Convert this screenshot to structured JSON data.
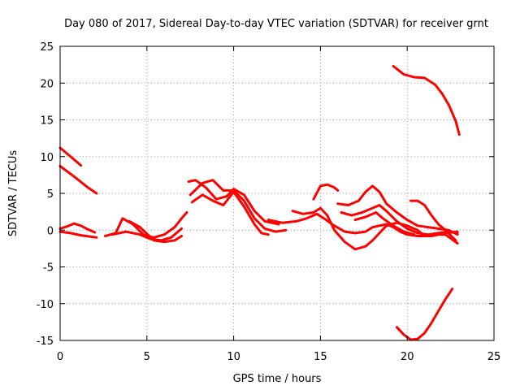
{
  "chart_data": {
    "type": "line",
    "title": "Day 080 of 2017, Sidereal Day-to-day VTEC variation (SDTVAR) for receiver grnt",
    "xlabel": "GPS time / hours",
    "ylabel": "SDTVAR / TECUs",
    "xlim": [
      0,
      25
    ],
    "ylim": [
      -15,
      25
    ],
    "xticks": [
      "0",
      "5",
      "10",
      "15",
      "20",
      "25"
    ],
    "yticks": [
      "-15",
      "-10",
      "-5",
      "0",
      "5",
      "10",
      "15",
      "20",
      "25"
    ],
    "grid": true,
    "color": "#ff0000",
    "series": [
      {
        "name": "s1",
        "x": [
          0,
          0.5,
          1.2
        ],
        "y": [
          11.2,
          10.2,
          8.8
        ]
      },
      {
        "name": "s2",
        "x": [
          0,
          0.8,
          1.6,
          2.1
        ],
        "y": [
          8.7,
          7.3,
          5.8,
          5.0
        ]
      },
      {
        "name": "s3",
        "x": [
          0,
          0.4,
          0.8,
          1.2,
          1.6,
          2.0
        ],
        "y": [
          0.2,
          0.5,
          0.9,
          0.6,
          0.1,
          -0.3
        ]
      },
      {
        "name": "s4",
        "x": [
          0,
          0.6,
          1.2,
          1.8,
          2.1
        ],
        "y": [
          -0.2,
          -0.4,
          -0.7,
          -0.9,
          -1.0
        ]
      },
      {
        "name": "s5",
        "x": [
          2.6,
          3.2,
          3.6,
          4.2,
          4.8,
          5.4,
          6.0,
          6.6,
          7.0,
          7.3
        ],
        "y": [
          -0.8,
          -0.4,
          1.6,
          0.8,
          -0.6,
          -1.0,
          -0.6,
          0.4,
          1.6,
          2.4
        ]
      },
      {
        "name": "s6",
        "x": [
          3.0,
          3.8,
          4.6,
          5.2,
          5.8,
          6.4,
          7.0
        ],
        "y": [
          -0.6,
          -0.2,
          -0.6,
          -1.2,
          -1.4,
          -1.0,
          0.2
        ]
      },
      {
        "name": "s7",
        "x": [
          4.0,
          4.6,
          5.4,
          6.0,
          6.6,
          7.0
        ],
        "y": [
          1.2,
          0.4,
          -1.4,
          -1.6,
          -1.4,
          -0.8
        ]
      },
      {
        "name": "s8",
        "x": [
          7.4,
          7.8,
          8.4,
          9.0,
          9.6,
          10.0,
          10.6,
          11.2,
          11.8,
          12.6
        ],
        "y": [
          6.6,
          6.8,
          5.8,
          4.2,
          4.6,
          5.6,
          4.8,
          2.6,
          1.2,
          0.8
        ]
      },
      {
        "name": "s9",
        "x": [
          7.5,
          8.2,
          8.8,
          9.4,
          10.0,
          10.6,
          11.2,
          11.8,
          12.4,
          13.0
        ],
        "y": [
          4.8,
          6.4,
          6.8,
          5.4,
          5.4,
          4.0,
          1.6,
          0.2,
          -0.2,
          0.0
        ]
      },
      {
        "name": "s10",
        "x": [
          7.6,
          8.2,
          8.8,
          9.4,
          10.0,
          10.6,
          11.2,
          11.6,
          12.0
        ],
        "y": [
          3.8,
          4.8,
          4.0,
          3.4,
          5.2,
          3.2,
          0.8,
          -0.4,
          -0.6
        ]
      },
      {
        "name": "s11",
        "x": [
          12.0,
          12.8,
          13.6,
          14.2,
          14.8,
          15.2,
          15.8,
          16.4,
          17.0,
          17.6,
          18.0,
          18.4,
          18.8,
          19.2,
          19.6,
          20.0,
          20.6,
          21.4,
          22.2,
          22.9
        ],
        "y": [
          1.4,
          1.0,
          1.2,
          1.6,
          2.2,
          1.6,
          0.6,
          -0.2,
          -0.4,
          -0.2,
          0.4,
          0.6,
          0.8,
          0.4,
          -0.2,
          -0.6,
          -0.8,
          -0.8,
          -0.4,
          -0.2
        ]
      },
      {
        "name": "s12",
        "x": [
          13.4,
          14.0,
          14.6,
          15.0,
          15.4,
          15.8,
          16.4,
          17.0,
          17.6,
          18.0,
          18.4,
          18.8,
          19.4,
          20.0,
          20.6,
          21.0,
          21.6,
          22.2,
          22.9
        ],
        "y": [
          2.6,
          2.2,
          2.4,
          3.0,
          2.0,
          0.0,
          -1.6,
          -2.6,
          -2.2,
          -1.4,
          -0.4,
          0.6,
          1.0,
          0.6,
          0.0,
          -0.8,
          -0.6,
          -0.6,
          -1.8
        ]
      },
      {
        "name": "s13",
        "x": [
          14.6,
          15.0,
          15.4,
          15.8,
          16.0
        ],
        "y": [
          4.2,
          6.0,
          6.2,
          5.8,
          5.4
        ]
      },
      {
        "name": "s14",
        "x": [
          16.0,
          16.6,
          17.2,
          17.6,
          18.0,
          18.4,
          18.8,
          19.4,
          20.0,
          20.6,
          21.2,
          21.8,
          22.4,
          22.9
        ],
        "y": [
          3.6,
          3.4,
          4.0,
          5.2,
          6.0,
          5.2,
          3.6,
          2.4,
          1.4,
          0.6,
          0.4,
          0.2,
          0.0,
          -0.6
        ]
      },
      {
        "name": "s15",
        "x": [
          16.2,
          16.8,
          17.4,
          18.0,
          18.4,
          18.8,
          19.4,
          20.0,
          20.6,
          21.2,
          21.8,
          22.4,
          22.9
        ],
        "y": [
          2.4,
          2.0,
          2.4,
          3.0,
          3.4,
          2.6,
          1.2,
          0.2,
          -0.4,
          -0.6,
          -0.4,
          -0.2,
          -0.4
        ]
      },
      {
        "name": "s16",
        "x": [
          17.0,
          17.6,
          18.2,
          18.6,
          19.2,
          19.8,
          20.4
        ],
        "y": [
          1.4,
          1.8,
          2.4,
          1.6,
          0.6,
          -0.2,
          -0.6
        ]
      },
      {
        "name": "s17",
        "x": [
          20.2,
          20.6,
          21.0,
          21.4,
          21.8,
          22.2,
          22.8
        ],
        "y": [
          4.0,
          4.0,
          3.4,
          2.0,
          0.8,
          0.0,
          -1.4
        ]
      },
      {
        "name": "s18",
        "x": [
          19.2,
          19.8,
          20.4,
          21.0,
          21.6,
          22.0,
          22.4,
          22.8,
          23.0
        ],
        "y": [
          22.3,
          21.2,
          20.8,
          20.7,
          19.8,
          18.6,
          17.0,
          14.8,
          13.0
        ]
      },
      {
        "name": "s19",
        "x": [
          19.4,
          19.8,
          20.2,
          20.6,
          21.0,
          21.4,
          21.8,
          22.2,
          22.6
        ],
        "y": [
          -13.2,
          -14.2,
          -14.9,
          -14.8,
          -14.0,
          -12.6,
          -11.0,
          -9.4,
          -8.0
        ]
      }
    ]
  }
}
